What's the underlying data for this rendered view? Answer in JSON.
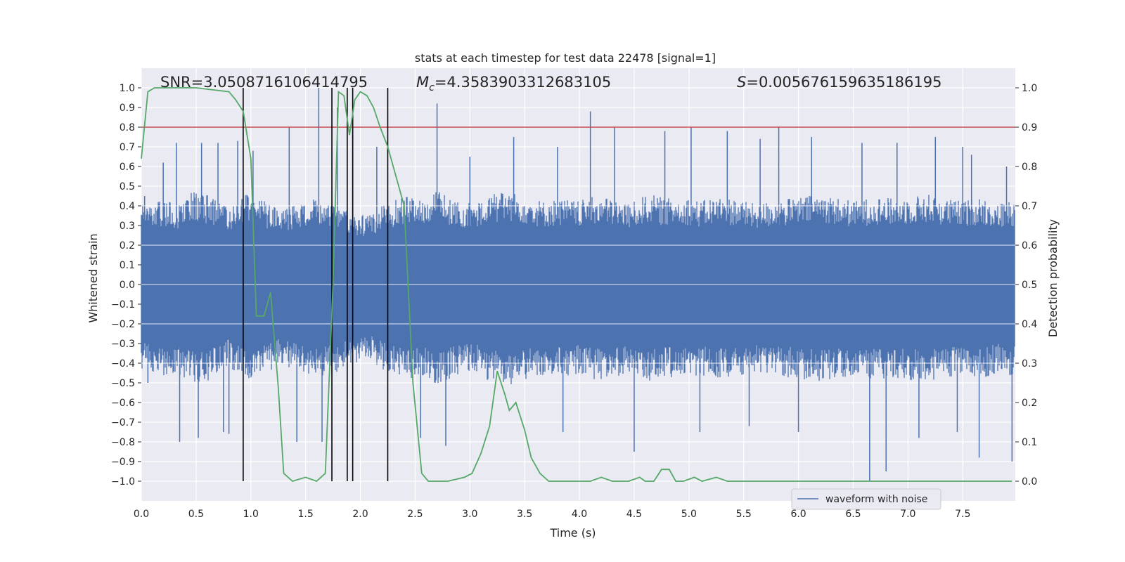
{
  "chart_data": {
    "type": "line",
    "title": "stats at each timestep for test data 22478 [signal=1]",
    "xlabel": "Time (s)",
    "ylabel": "Whitened strain",
    "y2label": "Detection probability",
    "xlim": [
      0.0,
      7.98
    ],
    "ylim": [
      -1.1,
      1.1
    ],
    "y2lim": [
      -0.05,
      1.05
    ],
    "xticks": [
      "0.0",
      "0.5",
      "1.0",
      "1.5",
      "2.0",
      "2.5",
      "3.0",
      "3.5",
      "4.0",
      "4.5",
      "5.0",
      "5.5",
      "6.0",
      "6.5",
      "7.0",
      "7.5"
    ],
    "yticks": [
      "1.0",
      "0.9",
      "0.8",
      "0.7",
      "0.6",
      "0.5",
      "0.4",
      "0.3",
      "0.2",
      "0.1",
      "0.0",
      "−0.1",
      "−0.2",
      "−0.3",
      "−0.4",
      "−0.5",
      "−0.6",
      "−0.7",
      "−0.8",
      "−0.9",
      "−1.0"
    ],
    "y2ticks": [
      "1.0",
      "0.9",
      "0.8",
      "0.7",
      "0.6",
      "0.5",
      "0.4",
      "0.3",
      "0.2",
      "0.1",
      "0.0"
    ],
    "annotations": {
      "snr_prefix": "SNR",
      "snr_value": "=3.0508716106414795",
      "mc_prefix": "M",
      "mc_sub": "c",
      "mc_value": "=4.3583903312683105",
      "s_prefix": "S",
      "s_value": "=0.005676159635186195"
    },
    "legend": {
      "placement": "lower-right",
      "label": "waveform with noise"
    },
    "threshold_y": 0.9,
    "vertical_lines_x": [
      0.93,
      1.74,
      1.88,
      1.93,
      2.25
    ],
    "series": [
      {
        "name": "waveform with noise",
        "color": "#4c72b0",
        "envelope": [
          0.32,
          0.35,
          0.33,
          0.38,
          0.36,
          0.31,
          0.37,
          0.34,
          0.3,
          0.33,
          0.35,
          0.34,
          0.3,
          0.28,
          0.33,
          0.36,
          0.35,
          0.38,
          0.34,
          0.33,
          0.37,
          0.38,
          0.36,
          0.34,
          0.35,
          0.34,
          0.36,
          0.35,
          0.33,
          0.37,
          0.35,
          0.36,
          0.34,
          0.36,
          0.35,
          0.33,
          0.34,
          0.35,
          0.36,
          0.37,
          0.35,
          0.34,
          0.36,
          0.35,
          0.36,
          0.37,
          0.35,
          0.34,
          0.36,
          0.33,
          0.35
        ],
        "spikes_up": [
          [
            0.03,
            0.45
          ],
          [
            0.2,
            0.62
          ],
          [
            0.32,
            0.72
          ],
          [
            0.55,
            0.72
          ],
          [
            0.7,
            0.72
          ],
          [
            0.88,
            0.73
          ],
          [
            1.02,
            0.68
          ],
          [
            1.35,
            0.8
          ],
          [
            1.62,
            1.0
          ],
          [
            1.79,
            0.9
          ],
          [
            1.93,
            0.85
          ],
          [
            2.15,
            0.7
          ],
          [
            2.7,
            0.92
          ],
          [
            3.0,
            0.65
          ],
          [
            3.4,
            0.75
          ],
          [
            3.8,
            0.7
          ],
          [
            4.1,
            0.88
          ],
          [
            4.32,
            0.8
          ],
          [
            4.78,
            0.78
          ],
          [
            5.02,
            0.8
          ],
          [
            5.35,
            0.78
          ],
          [
            5.65,
            0.74
          ],
          [
            5.82,
            0.8
          ],
          [
            6.12,
            0.75
          ],
          [
            6.58,
            0.72
          ],
          [
            6.9,
            0.72
          ],
          [
            7.25,
            0.75
          ],
          [
            7.5,
            0.7
          ],
          [
            7.58,
            0.66
          ],
          [
            7.9,
            0.6
          ]
        ],
        "spikes_down": [
          [
            0.06,
            -0.5
          ],
          [
            0.35,
            -0.8
          ],
          [
            0.52,
            -0.78
          ],
          [
            0.75,
            -0.75
          ],
          [
            0.8,
            -0.76
          ],
          [
            1.42,
            -0.8
          ],
          [
            1.65,
            -0.8
          ],
          [
            2.55,
            -0.78
          ],
          [
            2.78,
            -0.82
          ],
          [
            3.85,
            -0.75
          ],
          [
            4.5,
            -0.85
          ],
          [
            5.1,
            -0.75
          ],
          [
            5.55,
            -0.72
          ],
          [
            6.0,
            -0.75
          ],
          [
            6.65,
            -1.0
          ],
          [
            6.8,
            -0.95
          ],
          [
            7.1,
            -0.78
          ],
          [
            7.45,
            -0.75
          ],
          [
            7.65,
            -0.88
          ],
          [
            7.95,
            -0.9
          ]
        ]
      },
      {
        "name": "",
        "color": "#55a868",
        "x": [
          0.0,
          0.06,
          0.12,
          0.5,
          0.8,
          0.86,
          0.93,
          1.0,
          1.05,
          1.12,
          1.18,
          1.25,
          1.3,
          1.38,
          1.5,
          1.6,
          1.68,
          1.75,
          1.8,
          1.85,
          1.9,
          1.95,
          2.0,
          2.06,
          2.12,
          2.18,
          2.25,
          2.32,
          2.4,
          2.48,
          2.56,
          2.62,
          2.8,
          2.95,
          3.02,
          3.1,
          3.18,
          3.25,
          3.32,
          3.36,
          3.42,
          3.5,
          3.56,
          3.64,
          3.72,
          3.85,
          4.1,
          4.2,
          4.3,
          4.45,
          4.55,
          4.6,
          4.68,
          4.75,
          4.82,
          4.88,
          4.95,
          5.05,
          5.12,
          5.25,
          5.35,
          5.5,
          5.8,
          6.0,
          6.2,
          6.5,
          6.8,
          7.0,
          7.3,
          7.6,
          7.8,
          7.95
        ],
        "y": [
          0.82,
          0.99,
          1.0,
          1.0,
          0.99,
          0.97,
          0.94,
          0.82,
          0.42,
          0.42,
          0.48,
          0.24,
          0.02,
          0.0,
          0.01,
          0.0,
          0.02,
          0.5,
          0.99,
          0.98,
          0.88,
          0.97,
          0.99,
          0.98,
          0.95,
          0.9,
          0.85,
          0.78,
          0.7,
          0.25,
          0.02,
          0.0,
          0.0,
          0.01,
          0.02,
          0.07,
          0.14,
          0.28,
          0.22,
          0.18,
          0.2,
          0.13,
          0.06,
          0.02,
          0.0,
          0.0,
          0.0,
          0.01,
          0.0,
          0.0,
          0.01,
          0.0,
          0.0,
          0.03,
          0.03,
          0.0,
          0.0,
          0.01,
          0.0,
          0.01,
          0.0,
          0.0,
          0.0,
          0.0,
          0.0,
          0.0,
          0.0,
          0.0,
          0.0,
          0.0,
          0.0,
          0.0
        ]
      }
    ]
  }
}
